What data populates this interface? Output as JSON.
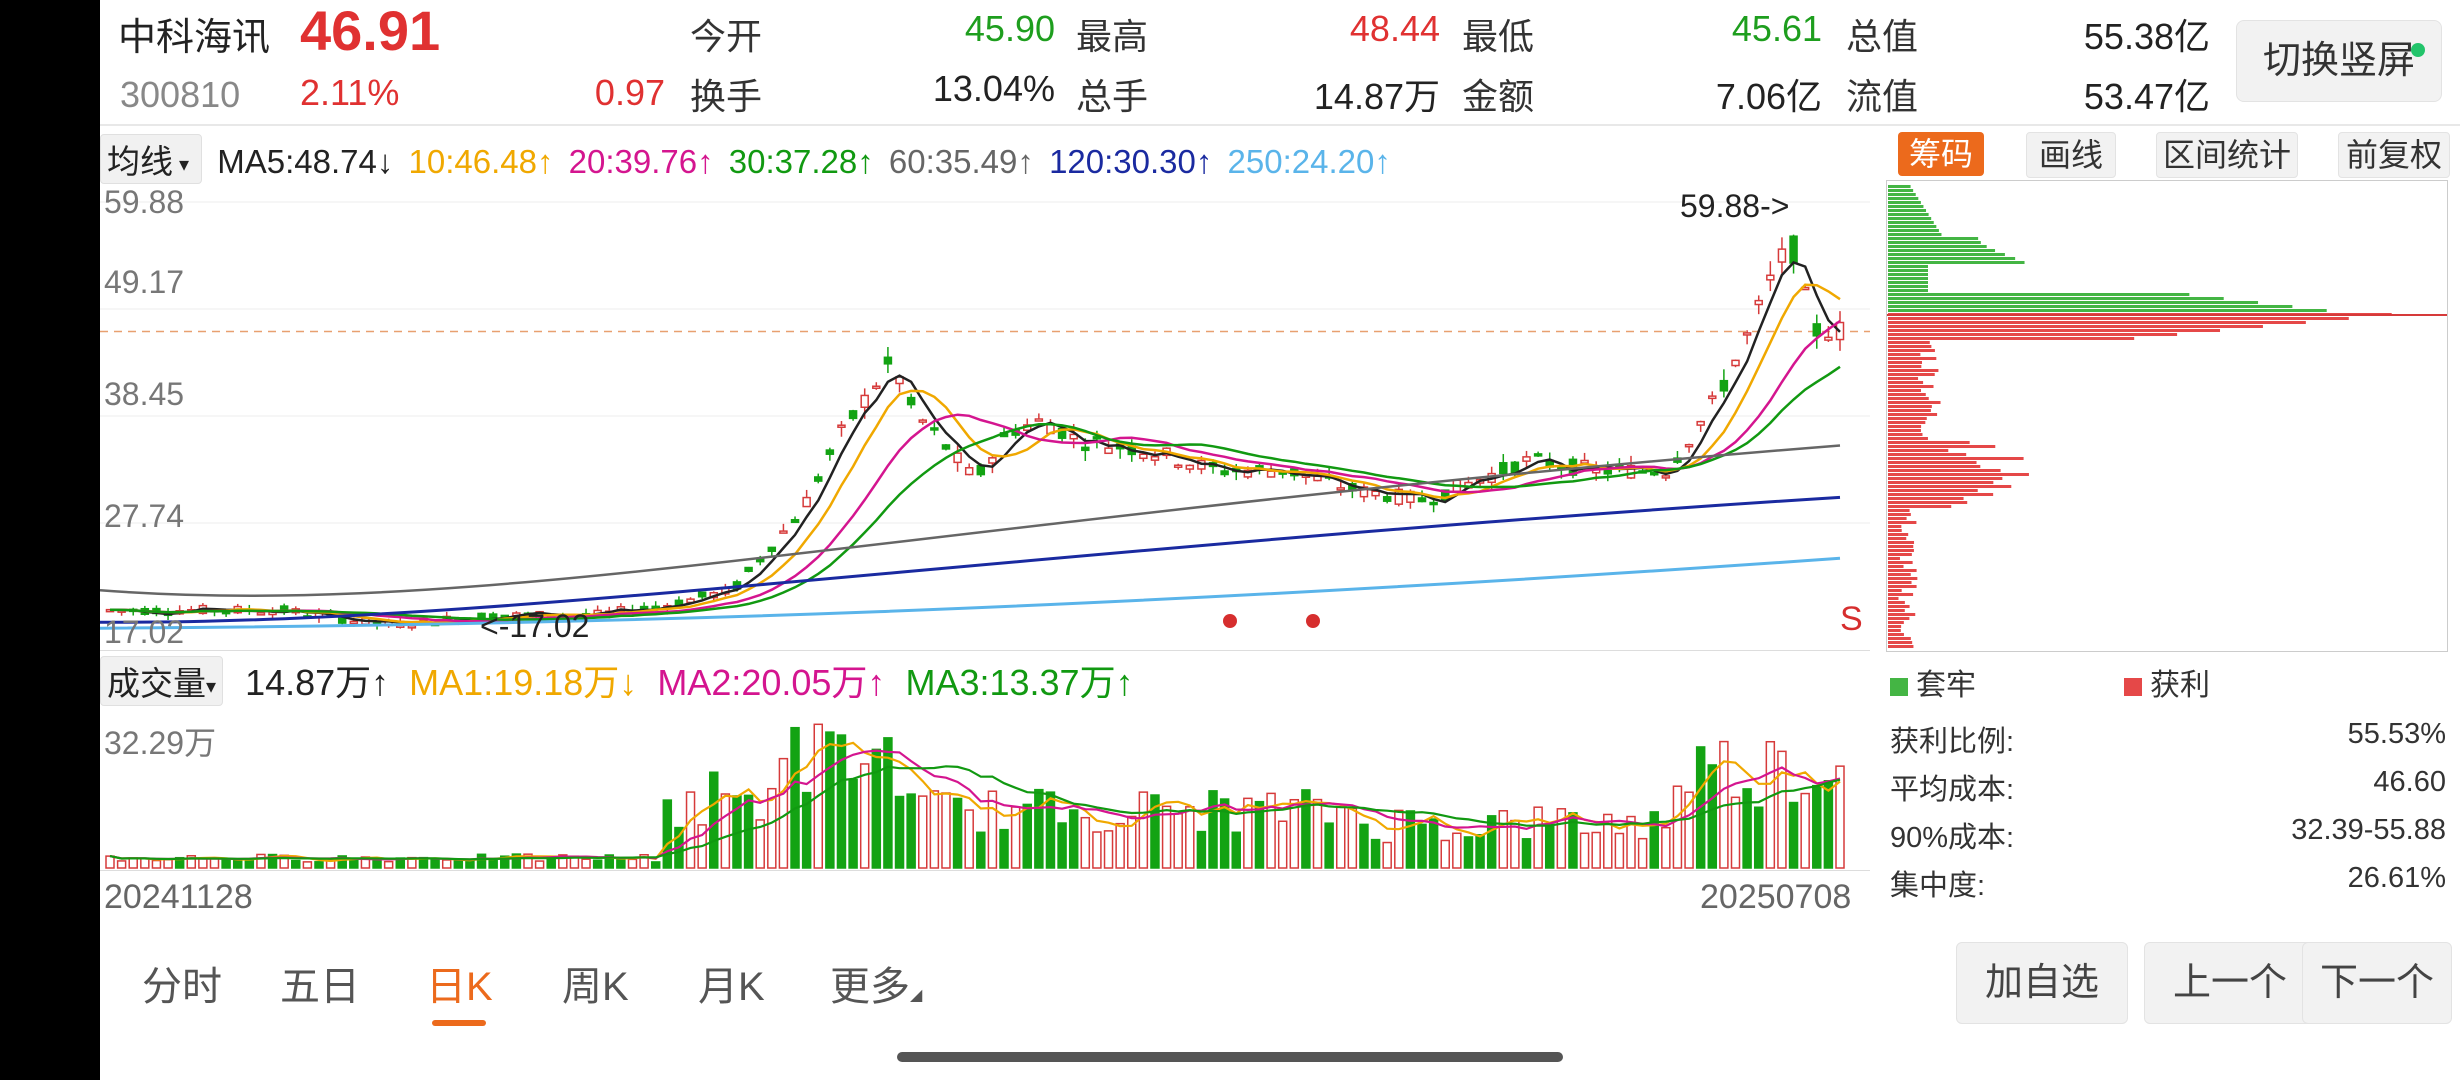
{
  "header": {
    "name": "中科海讯",
    "price": "46.91",
    "code": "300810",
    "change_pct": "2.11%",
    "change_amt": "0.97",
    "stats": [
      {
        "label": "今开",
        "value": "45.90",
        "color": "green"
      },
      {
        "label": "最高",
        "value": "48.44",
        "color": "red"
      },
      {
        "label": "最低",
        "value": "45.61",
        "color": "green"
      },
      {
        "label": "总值",
        "value": "55.38亿",
        "color": "dark"
      },
      {
        "label": "换手",
        "value": "13.04%",
        "color": "dark"
      },
      {
        "label": "总手",
        "value": "14.87万",
        "color": "dark"
      },
      {
        "label": "金额",
        "value": "7.06亿",
        "color": "dark"
      },
      {
        "label": "流值",
        "value": "53.47亿",
        "color": "dark"
      }
    ],
    "switch_label": "切换竖屏"
  },
  "ma_row": {
    "selector": "均线",
    "items": [
      {
        "text": "MA5:48.74↓",
        "color": "#222222"
      },
      {
        "text": "10:46.48↑",
        "color": "#f0a800"
      },
      {
        "text": "20:39.76↑",
        "color": "#d4158f"
      },
      {
        "text": "30:37.28↑",
        "color": "#119911"
      },
      {
        "text": "60:35.49↑",
        "color": "#666666"
      },
      {
        "text": "120:30.30↑",
        "color": "#1a2aa0"
      },
      {
        "text": "250:24.20↑",
        "color": "#5ab4ea"
      }
    ]
  },
  "chart_data": {
    "type": "candlestick",
    "y_ticks": [
      "59.88",
      "49.17",
      "38.45",
      "27.74",
      "17.02"
    ],
    "ylim": [
      17.02,
      59.88
    ],
    "annotations": {
      "max_label": "59.88->",
      "min_label": "<-17.02",
      "signal": "S"
    },
    "current_price": 46.91,
    "x_start": "20241128",
    "x_end": "20250708"
  },
  "right_panel": {
    "tabs": [
      {
        "label": "筹码",
        "active": true
      },
      {
        "label": "画线",
        "active": false
      },
      {
        "label": "区间统计",
        "active": false
      },
      {
        "label": "前复权",
        "active": false
      }
    ],
    "legend": [
      {
        "label": "套牢",
        "color": "#44b544"
      },
      {
        "label": "获利",
        "color": "#e54848"
      }
    ],
    "stats": [
      {
        "label": "获利比例:",
        "value": "55.53%"
      },
      {
        "label": "平均成本:",
        "value": "46.60"
      },
      {
        "label": "90%成本:",
        "value": "32.39-55.88"
      },
      {
        "label": "集中度:",
        "value": "26.61%"
      }
    ]
  },
  "volume": {
    "selector": "成交量",
    "value": "14.87万↑",
    "ma": [
      {
        "text": "MA1:19.18万↓",
        "color": "#f0a800"
      },
      {
        "text": "MA2:20.05万↑",
        "color": "#d4158f"
      },
      {
        "text": "MA3:13.37万↑",
        "color": "#119911"
      }
    ],
    "y_tick": "32.29万"
  },
  "bottom_tabs": [
    {
      "label": "分时",
      "active": false
    },
    {
      "label": "五日",
      "active": false
    },
    {
      "label": "日K",
      "active": true
    },
    {
      "label": "周K",
      "active": false
    },
    {
      "label": "月K",
      "active": false
    },
    {
      "label": "更多",
      "active": false
    }
  ],
  "actions": {
    "add": "加自选",
    "prev": "上一个",
    "next": "下一个"
  }
}
